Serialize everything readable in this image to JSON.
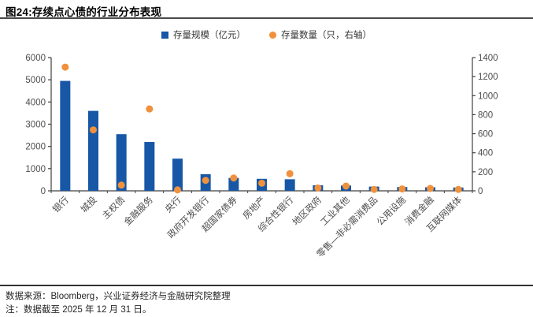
{
  "header": {
    "title": "图24:存续点心债的行业分布表现"
  },
  "legend": {
    "items": [
      {
        "label": "存量规模（亿元）",
        "marker": "square",
        "color": "#1757A6"
      },
      {
        "label": "存量数量（只，右轴）",
        "marker": "circle",
        "color": "#F0913C"
      }
    ]
  },
  "chart_data": {
    "type": "bar",
    "title": "存续点心债的行业分布表现",
    "categories": [
      "银行",
      "城投",
      "主权债",
      "金融服务",
      "央行",
      "政府开发银行",
      "超国家债券",
      "房地产",
      "综合性银行",
      "地区政府",
      "工业其他",
      "零售—非必需消费品",
      "公用设施",
      "消费金融",
      "互联网媒体"
    ],
    "series": [
      {
        "name": "存量规模（亿元）",
        "type": "bar",
        "axis": "left",
        "color": "#1757A6",
        "values": [
          4950,
          3600,
          2550,
          2200,
          1450,
          750,
          580,
          540,
          520,
          250,
          240,
          190,
          170,
          160,
          150
        ]
      },
      {
        "name": "存量数量（只，右轴）",
        "type": "scatter",
        "axis": "right",
        "color": "#F0913C",
        "values": [
          1300,
          640,
          60,
          860,
          10,
          110,
          135,
          80,
          180,
          30,
          50,
          15,
          20,
          25,
          15
        ]
      }
    ],
    "left_axis": {
      "min": 0,
      "max": 6000,
      "step": 1000,
      "ticks": [
        "0",
        "1000",
        "2000",
        "3000",
        "4000",
        "5000",
        "6000"
      ]
    },
    "right_axis": {
      "min": 0,
      "max": 1400,
      "step": 200,
      "ticks": [
        "0",
        "200",
        "400",
        "600",
        "800",
        "1000",
        "1200",
        "1400"
      ]
    },
    "grid": false,
    "legend_position": "top",
    "axis_color": "#404040",
    "tick_label_color": "#4d4d4d"
  },
  "footer": {
    "source": "数据来源：Bloomberg，兴业证券经济与金融研究院整理",
    "note": "注：数据截至 2025 年 12 月 31 日。"
  }
}
